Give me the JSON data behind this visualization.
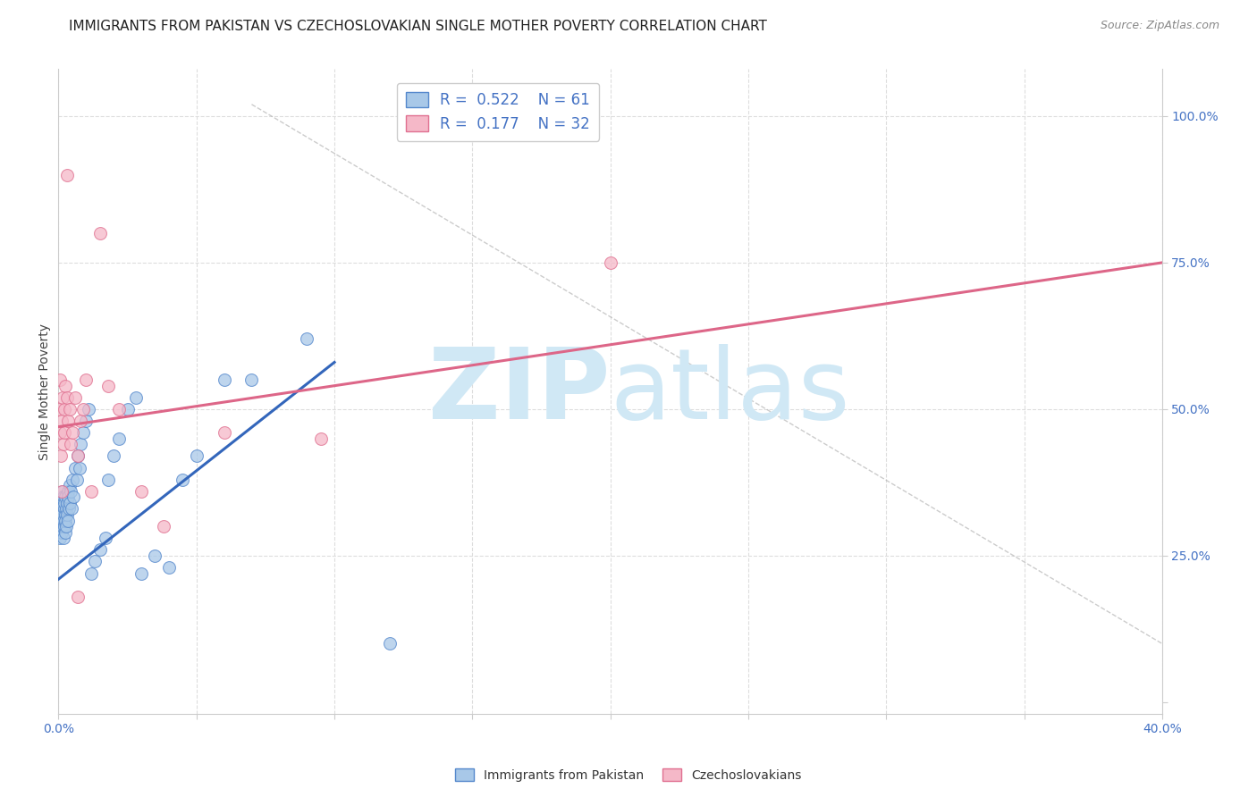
{
  "title": "IMMIGRANTS FROM PAKISTAN VS CZECHOSLOVAKIAN SINGLE MOTHER POVERTY CORRELATION CHART",
  "source": "Source: ZipAtlas.com",
  "ylabel": "Single Mother Poverty",
  "right_yticks": [
    0.0,
    0.25,
    0.5,
    0.75,
    1.0
  ],
  "right_yticklabels": [
    "",
    "25.0%",
    "50.0%",
    "75.0%",
    "100.0%"
  ],
  "xlim": [
    0.0,
    0.4
  ],
  "ylim": [
    -0.02,
    1.08
  ],
  "blue_R": "0.522",
  "blue_N": "61",
  "pink_R": "0.177",
  "pink_N": "32",
  "blue_color": "#a8c8e8",
  "pink_color": "#f5b8c8",
  "blue_edge_color": "#5588cc",
  "pink_edge_color": "#e07090",
  "blue_line_color": "#3366bb",
  "pink_line_color": "#dd6688",
  "watermark_color": "#d0e8f5",
  "gridline_color": "#dddddd",
  "background_color": "#ffffff",
  "blue_scatter_x": [
    0.0003,
    0.0005,
    0.0007,
    0.0008,
    0.0009,
    0.001,
    0.0012,
    0.0013,
    0.0014,
    0.0015,
    0.0016,
    0.0017,
    0.0018,
    0.0019,
    0.002,
    0.0021,
    0.0022,
    0.0023,
    0.0024,
    0.0025,
    0.0026,
    0.0027,
    0.0028,
    0.003,
    0.0032,
    0.0033,
    0.0034,
    0.0035,
    0.0037,
    0.004,
    0.0042,
    0.0045,
    0.0048,
    0.005,
    0.0055,
    0.006,
    0.0065,
    0.007,
    0.0075,
    0.008,
    0.009,
    0.01,
    0.011,
    0.012,
    0.013,
    0.015,
    0.017,
    0.018,
    0.02,
    0.022,
    0.025,
    0.028,
    0.03,
    0.035,
    0.04,
    0.045,
    0.05,
    0.06,
    0.07,
    0.09,
    0.12
  ],
  "blue_scatter_y": [
    0.32,
    0.28,
    0.34,
    0.3,
    0.35,
    0.31,
    0.33,
    0.29,
    0.36,
    0.3,
    0.32,
    0.28,
    0.35,
    0.31,
    0.33,
    0.3,
    0.34,
    0.29,
    0.32,
    0.35,
    0.31,
    0.33,
    0.3,
    0.34,
    0.32,
    0.36,
    0.31,
    0.35,
    0.33,
    0.37,
    0.34,
    0.36,
    0.33,
    0.38,
    0.35,
    0.4,
    0.38,
    0.42,
    0.4,
    0.44,
    0.46,
    0.48,
    0.5,
    0.22,
    0.24,
    0.26,
    0.28,
    0.38,
    0.42,
    0.45,
    0.5,
    0.52,
    0.22,
    0.25,
    0.23,
    0.38,
    0.42,
    0.55,
    0.55,
    0.62,
    0.1
  ],
  "pink_scatter_x": [
    0.0002,
    0.0004,
    0.0006,
    0.0008,
    0.001,
    0.0012,
    0.0015,
    0.0017,
    0.002,
    0.0022,
    0.0025,
    0.003,
    0.0035,
    0.004,
    0.0045,
    0.005,
    0.006,
    0.007,
    0.008,
    0.009,
    0.01,
    0.012,
    0.015,
    0.018,
    0.022,
    0.03,
    0.038,
    0.06,
    0.095,
    0.2,
    0.003,
    0.007
  ],
  "pink_scatter_y": [
    0.5,
    0.46,
    0.55,
    0.42,
    0.48,
    0.36,
    0.52,
    0.44,
    0.5,
    0.46,
    0.54,
    0.52,
    0.48,
    0.5,
    0.44,
    0.46,
    0.52,
    0.42,
    0.48,
    0.5,
    0.55,
    0.36,
    0.8,
    0.54,
    0.5,
    0.36,
    0.3,
    0.46,
    0.45,
    0.75,
    0.9,
    0.18
  ],
  "blue_trendline_x": [
    0.0,
    0.1
  ],
  "blue_trendline_y": [
    0.21,
    0.58
  ],
  "pink_trendline_x": [
    0.0,
    0.4
  ],
  "pink_trendline_y": [
    0.47,
    0.75
  ],
  "ref_line_x": [
    0.07,
    0.4
  ],
  "ref_line_y": [
    1.02,
    0.1
  ]
}
